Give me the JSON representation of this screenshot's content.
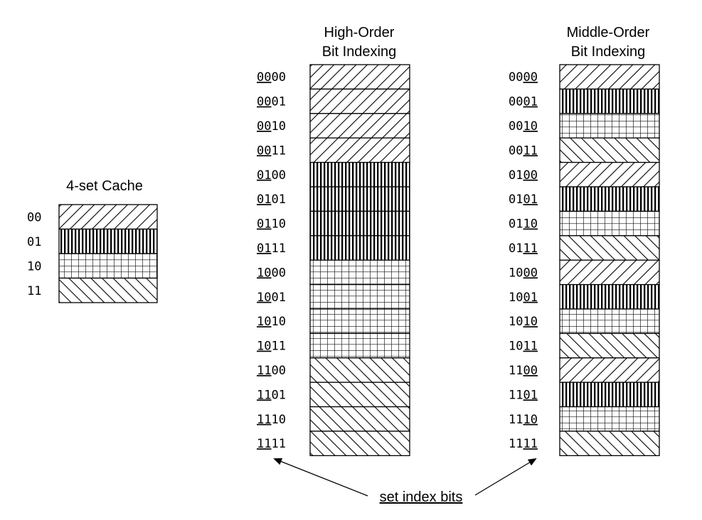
{
  "cache": {
    "title": "4-set Cache",
    "sets": [
      {
        "label": "00",
        "pattern": "forward-diagonal"
      },
      {
        "label": "01",
        "pattern": "vertical"
      },
      {
        "label": "10",
        "pattern": "grid"
      },
      {
        "label": "11",
        "pattern": "back-diagonal"
      }
    ]
  },
  "high_order": {
    "title_line1": "High-Order",
    "title_line2": "Bit Indexing",
    "underline": "first-two",
    "addresses": [
      "0000",
      "0001",
      "0010",
      "0011",
      "0100",
      "0101",
      "0110",
      "0111",
      "1000",
      "1001",
      "1010",
      "1011",
      "1100",
      "1101",
      "1110",
      "1111"
    ],
    "patterns": [
      "forward-diagonal",
      "forward-diagonal",
      "forward-diagonal",
      "forward-diagonal",
      "vertical",
      "vertical",
      "vertical",
      "vertical",
      "grid",
      "grid",
      "grid",
      "grid",
      "back-diagonal",
      "back-diagonal",
      "back-diagonal",
      "back-diagonal"
    ]
  },
  "middle_order": {
    "title_line1": "Middle-Order",
    "title_line2": "Bit Indexing",
    "underline": "last-two",
    "addresses": [
      "0000",
      "0001",
      "0010",
      "0011",
      "0100",
      "0101",
      "0110",
      "0111",
      "1000",
      "1001",
      "1010",
      "1011",
      "1100",
      "1101",
      "1110",
      "1111"
    ],
    "patterns": [
      "forward-diagonal",
      "vertical",
      "grid",
      "back-diagonal",
      "forward-diagonal",
      "vertical",
      "grid",
      "back-diagonal",
      "forward-diagonal",
      "vertical",
      "grid",
      "back-diagonal",
      "forward-diagonal",
      "vertical",
      "grid",
      "back-diagonal"
    ]
  },
  "annotation": {
    "text": "set index bits"
  }
}
